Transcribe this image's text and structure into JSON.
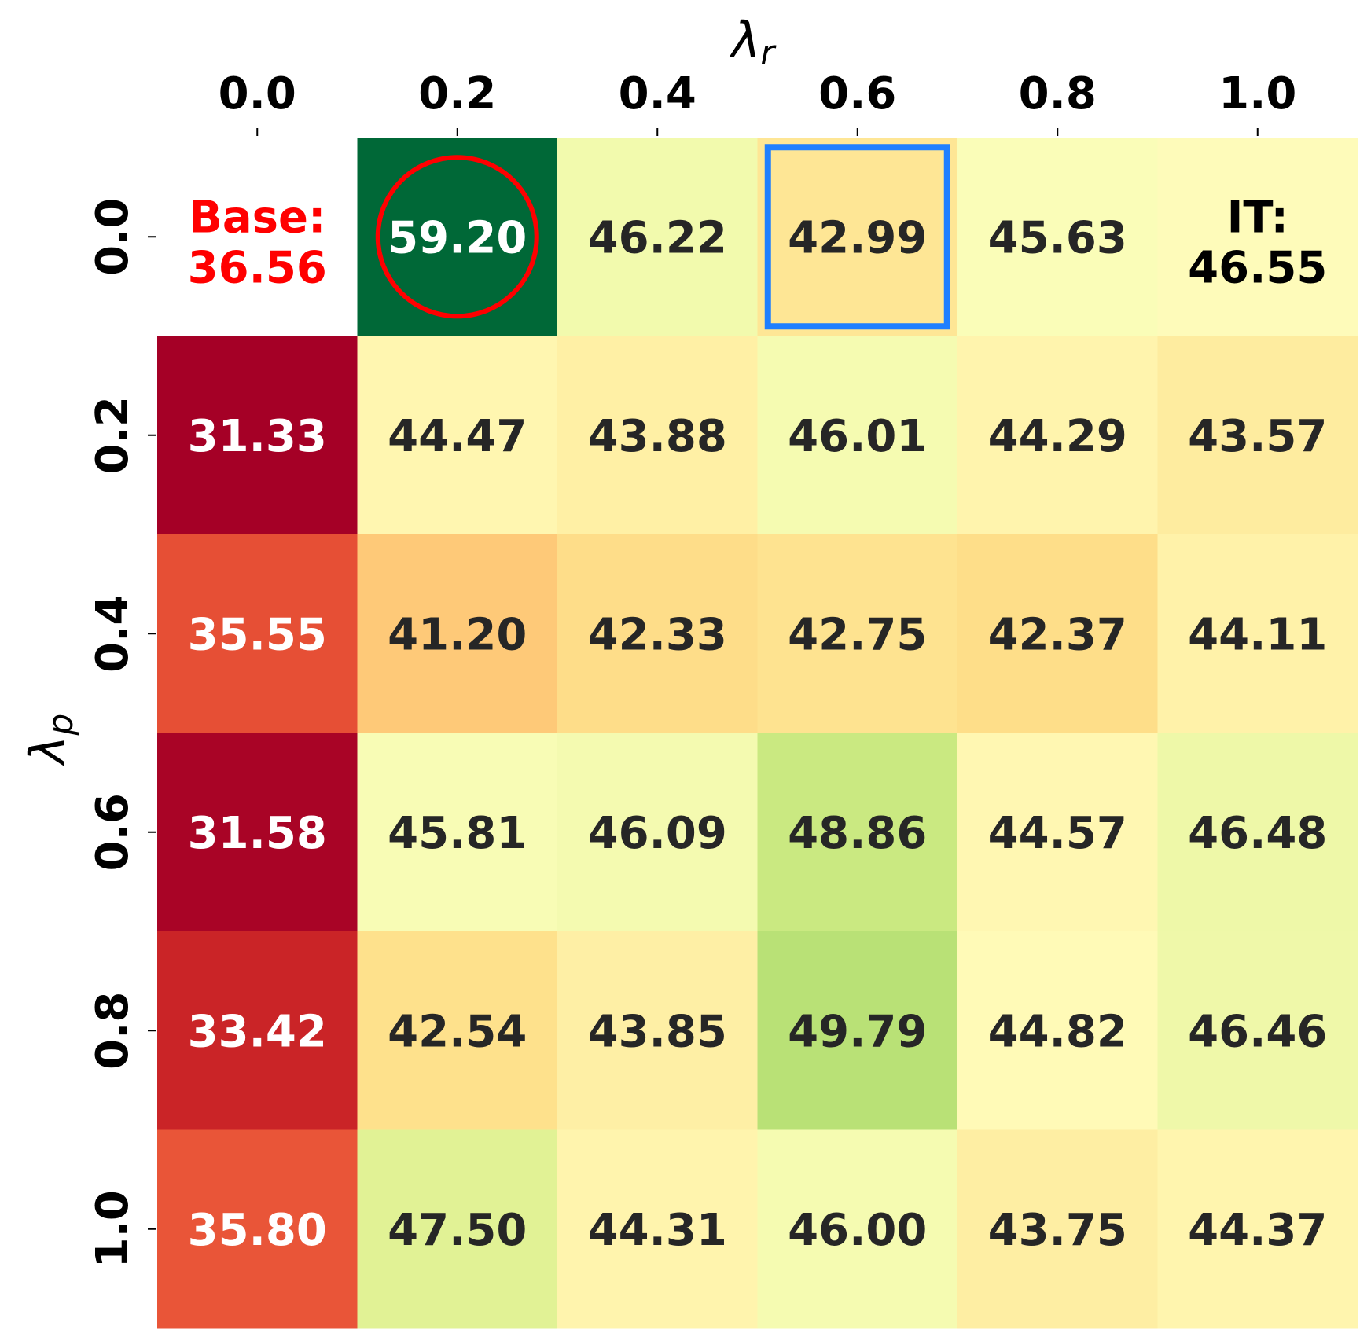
{
  "chart_data": {
    "type": "heatmap",
    "xlabel": "λ",
    "xlabel_sub": "r",
    "ylabel": "λ",
    "ylabel_sub": "p",
    "x_tick_labels": [
      "0.0",
      "0.2",
      "0.4",
      "0.6",
      "0.8",
      "1.0"
    ],
    "y_tick_labels": [
      "0.0",
      "0.2",
      "0.4",
      "0.6",
      "0.8",
      "1.0"
    ],
    "x_axis_position": "top",
    "colormap": "RdYlGn",
    "color_range": [
      31.33,
      59.2
    ],
    "colorbar": false,
    "rows": [
      [
        null,
        59.2,
        46.22,
        42.99,
        45.63,
        null
      ],
      [
        31.33,
        44.47,
        43.88,
        46.01,
        44.29,
        43.57
      ],
      [
        35.55,
        41.2,
        42.33,
        42.75,
        42.37,
        44.11
      ],
      [
        31.58,
        45.81,
        46.09,
        48.86,
        44.57,
        46.48
      ],
      [
        33.42,
        42.54,
        43.85,
        49.79,
        44.82,
        46.46
      ],
      [
        35.8,
        47.5,
        44.31,
        46.0,
        43.75,
        44.37
      ]
    ],
    "special_cells": [
      {
        "row": 0,
        "col": 0,
        "label": "Base:",
        "value": "36.56",
        "color": "#ff0000",
        "background": "#ffffff"
      },
      {
        "row": 0,
        "col": 5,
        "label": "IT:",
        "value": "46.55",
        "color": "#000000",
        "background": "#fefbba"
      }
    ],
    "highlights": [
      {
        "row": 0,
        "col": 1,
        "shape": "circle",
        "color": "#ff0000"
      },
      {
        "row": 0,
        "col": 3,
        "shape": "square",
        "color": "#1f7fff"
      }
    ],
    "text_colors": {
      "dark": "#262626",
      "light": "#ffffff"
    }
  }
}
